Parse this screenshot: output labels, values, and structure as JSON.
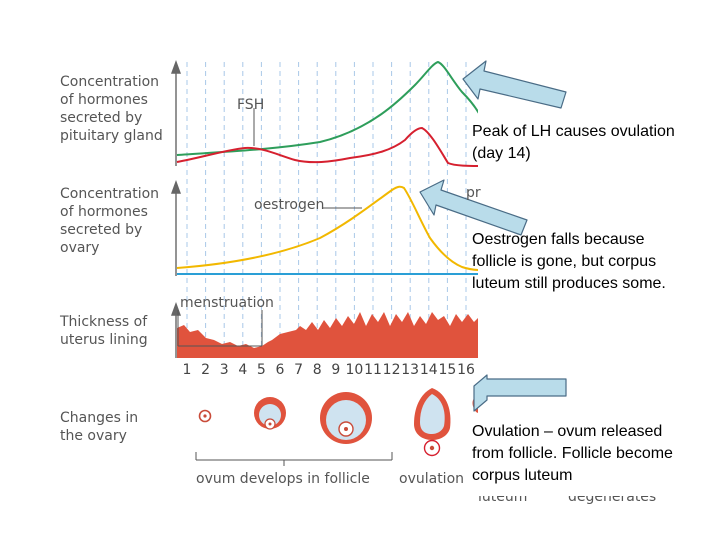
{
  "rows": {
    "pituitary": [
      "Concentration",
      "of hormones",
      "secreted by",
      "pituitary gland"
    ],
    "ovary_hormones": [
      "Concentration",
      "of hormones",
      "secreted by",
      "ovary"
    ],
    "uterus": [
      "Thickness of",
      "uterus lining"
    ],
    "ovary_changes": [
      "Changes in",
      "the ovary"
    ]
  },
  "curves": {
    "fsh": "FSH",
    "oestrogen": "oestrogen",
    "progesterone_partial": "pr",
    "menstruation": "menstruation"
  },
  "days": [
    "1",
    "2",
    "3",
    "4",
    "5",
    "6",
    "7",
    "8",
    "9",
    "10",
    "11",
    "12",
    "13",
    "14",
    "15",
    "16"
  ],
  "ovary_stages": {
    "develops": "ovum develops in follicle",
    "ovulation": "ovulation",
    "luteum": "luteum",
    "degenerates": "degenerates"
  },
  "callouts": {
    "lh_peak": [
      "Peak of LH causes ovulation",
      "(day 14)"
    ],
    "oestrogen_falls": [
      "Oestrogen falls because",
      "follicle is gone, but corpus",
      "luteum still produces some."
    ],
    "ovulation": [
      "Ovulation – ovum released",
      "from follicle. Follicle become",
      "corpus luteum"
    ]
  },
  "colors": {
    "lh": "#2e9e5b",
    "fsh": "#d6202f",
    "oestrogen": "#f2b800",
    "progesterone": "#2a9fd6",
    "uterus": "#e0533d",
    "grid": "#a9c8e8",
    "arrow_fill": "#b9dcea",
    "arrow_stroke": "#4a6c86"
  }
}
